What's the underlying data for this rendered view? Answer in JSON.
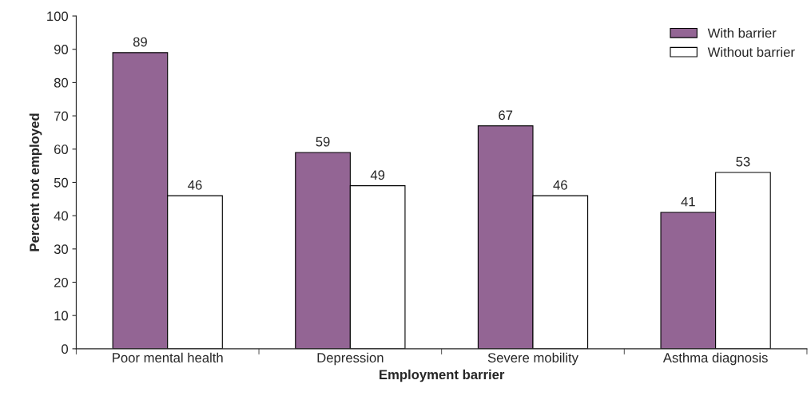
{
  "chart_data": {
    "type": "bar",
    "xlabel": "Employment barrier",
    "ylabel": "Percent not employed",
    "categories": [
      "Poor mental health",
      "Depression",
      "Severe mobility",
      "Asthma diagnosis"
    ],
    "series": [
      {
        "name": "With barrier",
        "color": "#936594",
        "values": [
          89,
          59,
          67,
          41
        ]
      },
      {
        "name": "Without barrier",
        "color": "#ffffff",
        "values": [
          46,
          49,
          46,
          53
        ]
      }
    ],
    "ylim": [
      0,
      100
    ],
    "yticks": [
      0,
      10,
      20,
      30,
      40,
      50,
      60,
      70,
      80,
      90,
      100
    ],
    "grid": false,
    "legend": "top right",
    "data_labels": true
  }
}
